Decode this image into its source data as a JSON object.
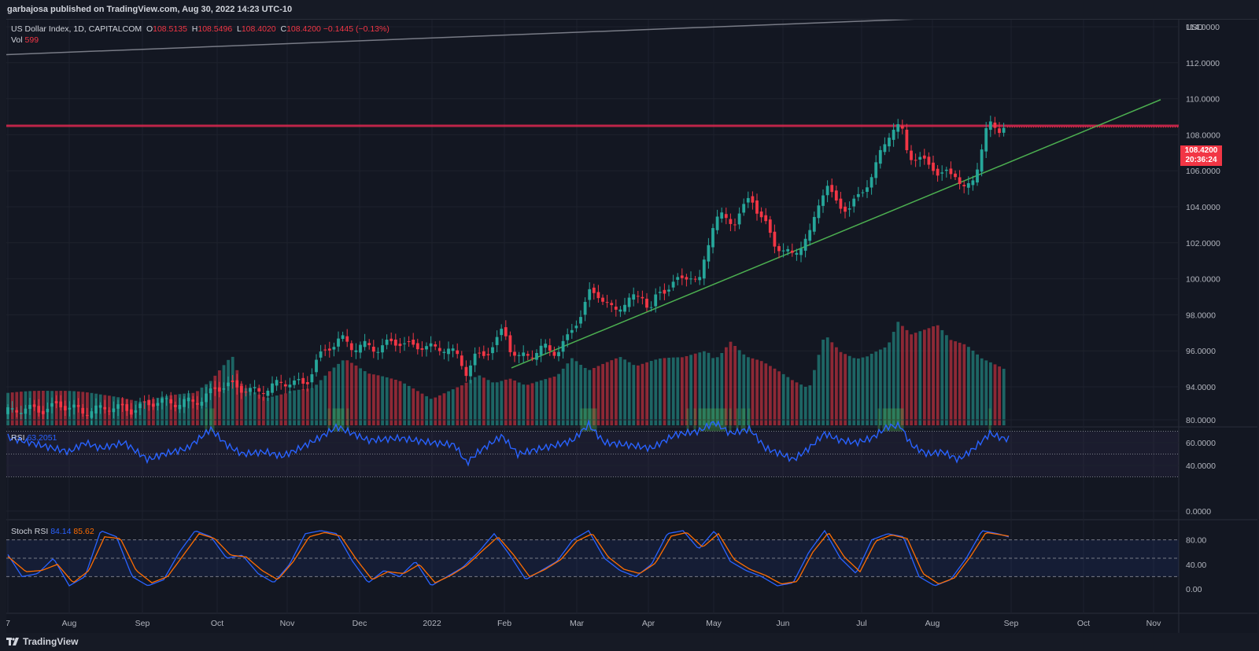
{
  "header": {
    "published_by": "garbajosa published on TradingView.com, Aug 30, 2022 14:23 UTC-10"
  },
  "legend": {
    "symbol": "US Dollar Index, 1D, CAPITALCOM",
    "open_label": "O",
    "open": "108.5135",
    "high_label": "H",
    "high": "108.5496",
    "low_label": "L",
    "low": "108.4020",
    "close_label": "C",
    "close": "108.4200",
    "change": "−0.1445 (−0.13%)",
    "vol_label": "Vol",
    "vol": "599",
    "rsi_label": "RSI",
    "rsi": "63.2051",
    "stoch_label": "Stoch RSI",
    "stoch_k": "84.14",
    "stoch_d": "85.62"
  },
  "price_badge": {
    "price": "108.4200",
    "countdown": "20:36:24"
  },
  "footer": {
    "brand": "TradingView"
  },
  "colors": {
    "up": "#26a69a",
    "down": "#f23645",
    "rsi": "#2962ff",
    "stoch_k": "#2962ff",
    "stoch_d": "#ff6d00",
    "trendline": "#4caf50",
    "resistance": "#f23645",
    "channel": "#787b86"
  },
  "chart_data": {
    "type": "candlestick",
    "currency_label": "USD",
    "y_ticks": [
      "114.0000",
      "112.0000",
      "110.0000",
      "108.0000",
      "106.0000",
      "104.0000",
      "102.0000",
      "100.0000",
      "98.0000",
      "96.0000",
      "94.0000"
    ],
    "x_ticks": [
      "7",
      "Aug",
      "Sep",
      "Oct",
      "Nov",
      "Dec",
      "2022",
      "Feb",
      "Mar",
      "Apr",
      "May",
      "Jun",
      "Jul",
      "Aug",
      "Sep",
      "Oct",
      "Nov"
    ],
    "rsi_ticks": [
      "80.0000",
      "60.0000",
      "40.0000",
      "0.0000"
    ],
    "stoch_ticks": [
      "80.00",
      "40.00",
      "0.00"
    ],
    "resistance_level": 108.5,
    "close_path": [
      [
        0,
        92.6
      ],
      [
        20,
        92.8
      ],
      [
        45,
        92.7
      ],
      [
        70,
        93.0
      ],
      [
        100,
        92.6
      ],
      [
        130,
        92.9
      ],
      [
        160,
        92.7
      ],
      [
        190,
        93.2
      ],
      [
        220,
        93.1
      ],
      [
        250,
        93.3
      ],
      [
        265,
        93.9
      ],
      [
        280,
        94.1
      ],
      [
        300,
        93.9
      ],
      [
        320,
        93.7
      ],
      [
        340,
        94.1
      ],
      [
        360,
        94.3
      ],
      [
        380,
        94.1
      ],
      [
        395,
        95.5
      ],
      [
        410,
        96.2
      ],
      [
        425,
        96.7
      ],
      [
        440,
        96.2
      ],
      [
        455,
        96.3
      ],
      [
        470,
        96.1
      ],
      [
        485,
        96.4
      ],
      [
        500,
        96.5
      ],
      [
        515,
        96.2
      ],
      [
        530,
        96.3
      ],
      [
        545,
        96.1
      ],
      [
        560,
        96.2
      ],
      [
        575,
        95.6
      ],
      [
        585,
        94.8
      ],
      [
        595,
        95.6
      ],
      [
        610,
        95.9
      ],
      [
        622,
        96.4
      ],
      [
        632,
        97.3
      ],
      [
        640,
        96.2
      ],
      [
        650,
        95.5
      ],
      [
        660,
        95.8
      ],
      [
        672,
        95.9
      ],
      [
        685,
        96.2
      ],
      [
        700,
        95.9
      ],
      [
        712,
        96.6
      ],
      [
        722,
        97.5
      ],
      [
        732,
        98.1
      ],
      [
        742,
        99.3
      ],
      [
        752,
        99.2
      ],
      [
        762,
        98.6
      ],
      [
        772,
        98.2
      ],
      [
        782,
        98.6
      ],
      [
        797,
        98.9
      ],
      [
        808,
        99.2
      ],
      [
        818,
        98.1
      ],
      [
        828,
        99.2
      ],
      [
        840,
        99.5
      ],
      [
        855,
        99.9
      ],
      [
        868,
        100.3
      ],
      [
        880,
        99.6
      ],
      [
        890,
        101.7
      ],
      [
        898,
        103.0
      ],
      [
        906,
        103.5
      ],
      [
        916,
        103.3
      ],
      [
        926,
        103.2
      ],
      [
        936,
        103.8
      ],
      [
        946,
        104.7
      ],
      [
        956,
        103.6
      ],
      [
        966,
        102.9
      ],
      [
        976,
        102.0
      ],
      [
        988,
        101.5
      ],
      [
        998,
        101.3
      ],
      [
        1010,
        101.9
      ],
      [
        1022,
        102.5
      ],
      [
        1032,
        104.2
      ],
      [
        1042,
        105.3
      ],
      [
        1052,
        104.3
      ],
      [
        1062,
        104.0
      ],
      [
        1072,
        103.9
      ],
      [
        1082,
        104.5
      ],
      [
        1092,
        105.2
      ],
      [
        1102,
        105.8
      ],
      [
        1110,
        106.9
      ],
      [
        1120,
        108.0
      ],
      [
        1130,
        108.4
      ],
      [
        1138,
        108.3
      ],
      [
        1146,
        107.0
      ],
      [
        1156,
        106.6
      ],
      [
        1166,
        106.5
      ],
      [
        1176,
        106.4
      ],
      [
        1186,
        105.6
      ],
      [
        1196,
        105.9
      ],
      [
        1206,
        105.9
      ],
      [
        1216,
        104.9
      ],
      [
        1226,
        105.2
      ],
      [
        1236,
        106.6
      ],
      [
        1244,
        108.1
      ],
      [
        1252,
        108.6
      ],
      [
        1260,
        108.3
      ],
      [
        1268,
        108.5
      ],
      [
        1276,
        108.4
      ]
    ],
    "volume_path": [
      [
        0,
        40
      ],
      [
        60,
        32
      ],
      [
        120,
        30
      ],
      [
        200,
        32
      ],
      [
        240,
        30
      ],
      [
        260,
        45
      ],
      [
        287,
        80
      ],
      [
        300,
        40
      ],
      [
        330,
        30
      ],
      [
        360,
        45
      ],
      [
        390,
        42
      ],
      [
        410,
        60
      ],
      [
        430,
        75
      ],
      [
        460,
        55
      ],
      [
        500,
        50
      ],
      [
        540,
        35
      ],
      [
        580,
        45
      ],
      [
        600,
        55
      ],
      [
        620,
        42
      ],
      [
        640,
        48
      ],
      [
        660,
        40
      ],
      [
        700,
        60
      ],
      [
        720,
        90
      ],
      [
        740,
        70
      ],
      [
        760,
        75
      ],
      [
        780,
        80
      ],
      [
        800,
        65
      ],
      [
        830,
        75
      ],
      [
        860,
        80
      ],
      [
        880,
        90
      ],
      [
        890,
        95
      ],
      [
        900,
        85
      ],
      [
        920,
        110
      ],
      [
        940,
        85
      ],
      [
        960,
        75
      ],
      [
        980,
        60
      ],
      [
        1000,
        45
      ],
      [
        1020,
        35
      ],
      [
        1040,
        110
      ],
      [
        1060,
        90
      ],
      [
        1080,
        85
      ],
      [
        1100,
        95
      ],
      [
        1120,
        100
      ],
      [
        1133,
        130
      ],
      [
        1150,
        110
      ],
      [
        1170,
        115
      ],
      [
        1183,
        120
      ],
      [
        1200,
        100
      ],
      [
        1220,
        95
      ],
      [
        1240,
        80
      ],
      [
        1260,
        75
      ],
      [
        1276,
        70
      ]
    ],
    "rsi_path": [
      [
        0,
        65
      ],
      [
        30,
        60
      ],
      [
        60,
        55
      ],
      [
        80,
        52
      ],
      [
        100,
        60
      ],
      [
        120,
        55
      ],
      [
        150,
        60
      ],
      [
        180,
        45
      ],
      [
        200,
        50
      ],
      [
        230,
        55
      ],
      [
        260,
        72
      ],
      [
        280,
        58
      ],
      [
        300,
        50
      ],
      [
        330,
        52
      ],
      [
        350,
        48
      ],
      [
        370,
        54
      ],
      [
        400,
        65
      ],
      [
        420,
        74
      ],
      [
        440,
        68
      ],
      [
        460,
        62
      ],
      [
        500,
        64
      ],
      [
        540,
        60
      ],
      [
        570,
        58
      ],
      [
        585,
        42
      ],
      [
        600,
        52
      ],
      [
        630,
        66
      ],
      [
        650,
        50
      ],
      [
        680,
        55
      ],
      [
        700,
        58
      ],
      [
        720,
        62
      ],
      [
        740,
        76
      ],
      [
        760,
        60
      ],
      [
        790,
        58
      ],
      [
        820,
        55
      ],
      [
        850,
        67
      ],
      [
        880,
        70
      ],
      [
        900,
        78
      ],
      [
        920,
        68
      ],
      [
        945,
        72
      ],
      [
        965,
        55
      ],
      [
        985,
        50
      ],
      [
        1000,
        45
      ],
      [
        1020,
        55
      ],
      [
        1040,
        68
      ],
      [
        1060,
        62
      ],
      [
        1080,
        60
      ],
      [
        1100,
        64
      ],
      [
        1120,
        74
      ],
      [
        1136,
        75
      ],
      [
        1150,
        58
      ],
      [
        1170,
        50
      ],
      [
        1190,
        52
      ],
      [
        1210,
        45
      ],
      [
        1230,
        55
      ],
      [
        1250,
        68
      ],
      [
        1265,
        64
      ],
      [
        1276,
        63
      ]
    ],
    "stoch_k_path": [
      [
        0,
        60
      ],
      [
        20,
        20
      ],
      [
        40,
        25
      ],
      [
        60,
        50
      ],
      [
        80,
        5
      ],
      [
        100,
        20
      ],
      [
        120,
        95
      ],
      [
        140,
        85
      ],
      [
        160,
        20
      ],
      [
        180,
        5
      ],
      [
        200,
        15
      ],
      [
        220,
        60
      ],
      [
        240,
        95
      ],
      [
        260,
        85
      ],
      [
        280,
        50
      ],
      [
        300,
        55
      ],
      [
        320,
        25
      ],
      [
        340,
        10
      ],
      [
        360,
        40
      ],
      [
        380,
        90
      ],
      [
        400,
        95
      ],
      [
        420,
        90
      ],
      [
        440,
        45
      ],
      [
        460,
        10
      ],
      [
        480,
        30
      ],
      [
        500,
        20
      ],
      [
        520,
        45
      ],
      [
        540,
        5
      ],
      [
        560,
        20
      ],
      [
        580,
        35
      ],
      [
        600,
        60
      ],
      [
        620,
        90
      ],
      [
        640,
        55
      ],
      [
        660,
        15
      ],
      [
        680,
        30
      ],
      [
        700,
        45
      ],
      [
        720,
        80
      ],
      [
        740,
        95
      ],
      [
        760,
        50
      ],
      [
        780,
        30
      ],
      [
        800,
        20
      ],
      [
        820,
        40
      ],
      [
        840,
        90
      ],
      [
        860,
        95
      ],
      [
        880,
        65
      ],
      [
        900,
        95
      ],
      [
        920,
        45
      ],
      [
        940,
        30
      ],
      [
        960,
        20
      ],
      [
        980,
        5
      ],
      [
        1000,
        10
      ],
      [
        1020,
        60
      ],
      [
        1040,
        95
      ],
      [
        1060,
        50
      ],
      [
        1080,
        25
      ],
      [
        1100,
        80
      ],
      [
        1120,
        90
      ],
      [
        1140,
        85
      ],
      [
        1160,
        20
      ],
      [
        1180,
        5
      ],
      [
        1200,
        15
      ],
      [
        1220,
        50
      ],
      [
        1240,
        95
      ],
      [
        1260,
        90
      ],
      [
        1276,
        84
      ]
    ],
    "stoch_d_path": [
      [
        0,
        55
      ],
      [
        25,
        28
      ],
      [
        45,
        30
      ],
      [
        65,
        40
      ],
      [
        85,
        10
      ],
      [
        105,
        30
      ],
      [
        125,
        85
      ],
      [
        145,
        82
      ],
      [
        165,
        30
      ],
      [
        185,
        10
      ],
      [
        205,
        20
      ],
      [
        225,
        55
      ],
      [
        245,
        90
      ],
      [
        265,
        82
      ],
      [
        285,
        55
      ],
      [
        305,
        52
      ],
      [
        325,
        30
      ],
      [
        345,
        15
      ],
      [
        365,
        45
      ],
      [
        385,
        85
      ],
      [
        405,
        92
      ],
      [
        425,
        86
      ],
      [
        445,
        48
      ],
      [
        465,
        15
      ],
      [
        485,
        28
      ],
      [
        505,
        25
      ],
      [
        525,
        40
      ],
      [
        545,
        10
      ],
      [
        565,
        22
      ],
      [
        585,
        38
      ],
      [
        605,
        62
      ],
      [
        625,
        85
      ],
      [
        645,
        55
      ],
      [
        665,
        20
      ],
      [
        685,
        32
      ],
      [
        705,
        48
      ],
      [
        725,
        78
      ],
      [
        745,
        90
      ],
      [
        765,
        52
      ],
      [
        785,
        32
      ],
      [
        805,
        25
      ],
      [
        825,
        42
      ],
      [
        845,
        86
      ],
      [
        865,
        92
      ],
      [
        885,
        68
      ],
      [
        905,
        90
      ],
      [
        925,
        48
      ],
      [
        945,
        32
      ],
      [
        965,
        22
      ],
      [
        985,
        8
      ],
      [
        1005,
        12
      ],
      [
        1025,
        60
      ],
      [
        1045,
        92
      ],
      [
        1065,
        52
      ],
      [
        1085,
        28
      ],
      [
        1105,
        78
      ],
      [
        1125,
        88
      ],
      [
        1145,
        82
      ],
      [
        1165,
        25
      ],
      [
        1185,
        8
      ],
      [
        1205,
        18
      ],
      [
        1225,
        52
      ],
      [
        1245,
        92
      ],
      [
        1265,
        88
      ],
      [
        1276,
        85.6
      ]
    ]
  }
}
